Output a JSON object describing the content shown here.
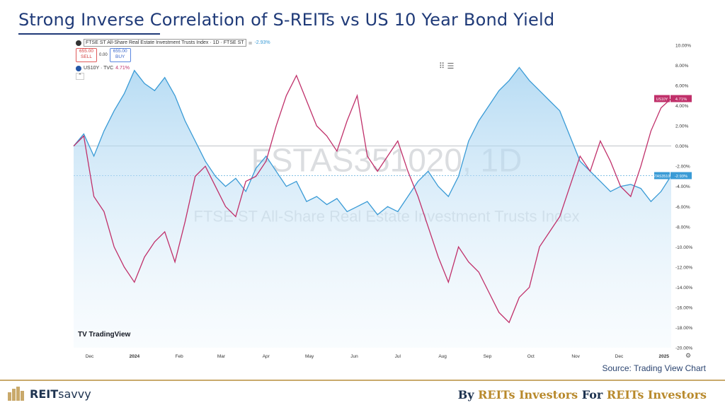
{
  "slide": {
    "title": "Strong Inverse Correlation of S-REITs vs US 10 Year Bond Yield",
    "source": "Source: Trading View Chart",
    "brand_a": "REIT",
    "brand_b": "savvy",
    "tagline_parts": [
      "By ",
      "REITs Investors",
      " For ",
      "REITs Investors"
    ]
  },
  "chart_legend": {
    "series1": "FTSE ST All-Share Real Estate Investment Trusts Index · 1D · FTSE ST",
    "series1_value": "-2.93%",
    "sell_price": "655.00",
    "sell_label": "SELL",
    "spread": "0.00",
    "buy_price": "655.00",
    "buy_label": "BUY",
    "series2": "US10Y · TVC",
    "series2_value": "4.71%"
  },
  "watermark": {
    "symbol": "FSTAS351020, 1D",
    "name": "FTSE ST All-Share Real Estate Investment Trusts Index",
    "logo": "TradingView"
  },
  "chart_data": {
    "type": "line",
    "yunit": "%",
    "ylim": [
      -20,
      10
    ],
    "yticks": [
      "10.00%",
      "8.00%",
      "6.00%",
      "4.00%",
      "2.00%",
      "0.00%",
      "-2.00%",
      "-4.00%",
      "-6.00%",
      "-8.00%",
      "-10.00%",
      "-12.00%",
      "-14.00%",
      "-16.00%",
      "-18.00%",
      "-20.00%"
    ],
    "xticks": [
      "Dec",
      "2024",
      "Feb",
      "Mar",
      "Apr",
      "May",
      "Jun",
      "Jul",
      "Aug",
      "Sep",
      "Oct",
      "Nov",
      "Dec",
      "2025"
    ],
    "x_domain": [
      "2023-11-20",
      "2025-01-06"
    ],
    "series": [
      {
        "name": "FTSE ST All-Share Real Estate Investment Trusts Index",
        "tag": "FSTAS351020",
        "last_label": "-2.93%",
        "color": "#3a9bd6",
        "points": [
          [
            "2023-11-20",
            0.0
          ],
          [
            "2023-11-27",
            1.2
          ],
          [
            "2023-12-04",
            -1.0
          ],
          [
            "2023-12-11",
            1.5
          ],
          [
            "2023-12-18",
            3.5
          ],
          [
            "2023-12-25",
            5.2
          ],
          [
            "2024-01-01",
            7.5
          ],
          [
            "2024-01-08",
            6.2
          ],
          [
            "2024-01-15",
            5.5
          ],
          [
            "2024-01-22",
            6.8
          ],
          [
            "2024-01-29",
            5.0
          ],
          [
            "2024-02-05",
            2.5
          ],
          [
            "2024-02-12",
            0.5
          ],
          [
            "2024-02-19",
            -1.5
          ],
          [
            "2024-02-26",
            -3.0
          ],
          [
            "2024-03-04",
            -4.0
          ],
          [
            "2024-03-11",
            -3.2
          ],
          [
            "2024-03-18",
            -4.5
          ],
          [
            "2024-03-25",
            -2.2
          ],
          [
            "2024-04-01",
            -1.0
          ],
          [
            "2024-04-08",
            -2.5
          ],
          [
            "2024-04-15",
            -4.0
          ],
          [
            "2024-04-22",
            -3.5
          ],
          [
            "2024-04-29",
            -5.5
          ],
          [
            "2024-05-06",
            -5.0
          ],
          [
            "2024-05-13",
            -5.8
          ],
          [
            "2024-05-20",
            -5.2
          ],
          [
            "2024-05-27",
            -6.5
          ],
          [
            "2024-06-03",
            -6.0
          ],
          [
            "2024-06-10",
            -5.5
          ],
          [
            "2024-06-17",
            -6.8
          ],
          [
            "2024-06-24",
            -6.0
          ],
          [
            "2024-07-01",
            -6.5
          ],
          [
            "2024-07-08",
            -5.0
          ],
          [
            "2024-07-15",
            -3.5
          ],
          [
            "2024-07-22",
            -2.5
          ],
          [
            "2024-07-29",
            -4.0
          ],
          [
            "2024-08-05",
            -5.0
          ],
          [
            "2024-08-12",
            -3.0
          ],
          [
            "2024-08-19",
            0.5
          ],
          [
            "2024-08-26",
            2.5
          ],
          [
            "2024-09-02",
            4.0
          ],
          [
            "2024-09-09",
            5.5
          ],
          [
            "2024-09-16",
            6.5
          ],
          [
            "2024-09-23",
            7.8
          ],
          [
            "2024-09-30",
            6.5
          ],
          [
            "2024-10-07",
            5.5
          ],
          [
            "2024-10-14",
            4.5
          ],
          [
            "2024-10-21",
            3.5
          ],
          [
            "2024-10-28",
            1.0
          ],
          [
            "2024-11-04",
            -1.5
          ],
          [
            "2024-11-11",
            -2.5
          ],
          [
            "2024-11-18",
            -3.5
          ],
          [
            "2024-11-25",
            -4.5
          ],
          [
            "2024-12-02",
            -4.0
          ],
          [
            "2024-12-09",
            -3.8
          ],
          [
            "2024-12-16",
            -4.2
          ],
          [
            "2024-12-23",
            -5.5
          ],
          [
            "2024-12-30",
            -4.5
          ],
          [
            "2025-01-06",
            -2.93
          ]
        ]
      },
      {
        "name": "US10Y",
        "tag": "US10Y",
        "last_label": "4.71%",
        "color": "#c0306a",
        "points": [
          [
            "2023-11-20",
            0.0
          ],
          [
            "2023-11-27",
            1.0
          ],
          [
            "2023-12-04",
            -5.0
          ],
          [
            "2023-12-11",
            -6.5
          ],
          [
            "2023-12-18",
            -10.0
          ],
          [
            "2023-12-25",
            -12.0
          ],
          [
            "2024-01-01",
            -13.5
          ],
          [
            "2024-01-08",
            -11.0
          ],
          [
            "2024-01-15",
            -9.5
          ],
          [
            "2024-01-22",
            -8.5
          ],
          [
            "2024-01-29",
            -11.5
          ],
          [
            "2024-02-05",
            -7.5
          ],
          [
            "2024-02-12",
            -3.0
          ],
          [
            "2024-02-19",
            -2.0
          ],
          [
            "2024-02-26",
            -4.0
          ],
          [
            "2024-03-04",
            -6.0
          ],
          [
            "2024-03-11",
            -7.0
          ],
          [
            "2024-03-18",
            -3.5
          ],
          [
            "2024-03-25",
            -3.0
          ],
          [
            "2024-04-01",
            -1.5
          ],
          [
            "2024-04-08",
            2.0
          ],
          [
            "2024-04-15",
            5.0
          ],
          [
            "2024-04-22",
            7.0
          ],
          [
            "2024-04-29",
            4.5
          ],
          [
            "2024-05-06",
            2.0
          ],
          [
            "2024-05-13",
            1.0
          ],
          [
            "2024-05-20",
            -0.5
          ],
          [
            "2024-05-27",
            2.5
          ],
          [
            "2024-06-03",
            5.0
          ],
          [
            "2024-06-10",
            -1.0
          ],
          [
            "2024-06-17",
            -2.5
          ],
          [
            "2024-06-24",
            -1.0
          ],
          [
            "2024-07-01",
            0.5
          ],
          [
            "2024-07-08",
            -2.5
          ],
          [
            "2024-07-15",
            -5.0
          ],
          [
            "2024-07-22",
            -8.0
          ],
          [
            "2024-07-29",
            -11.0
          ],
          [
            "2024-08-05",
            -13.5
          ],
          [
            "2024-08-12",
            -10.0
          ],
          [
            "2024-08-19",
            -11.5
          ],
          [
            "2024-08-26",
            -12.5
          ],
          [
            "2024-09-02",
            -14.5
          ],
          [
            "2024-09-09",
            -16.5
          ],
          [
            "2024-09-16",
            -17.5
          ],
          [
            "2024-09-23",
            -15.0
          ],
          [
            "2024-09-30",
            -14.0
          ],
          [
            "2024-10-07",
            -10.0
          ],
          [
            "2024-10-14",
            -8.5
          ],
          [
            "2024-10-21",
            -7.0
          ],
          [
            "2024-10-28",
            -4.0
          ],
          [
            "2024-11-04",
            -1.0
          ],
          [
            "2024-11-11",
            -2.5
          ],
          [
            "2024-11-18",
            0.5
          ],
          [
            "2024-11-25",
            -1.5
          ],
          [
            "2024-12-02",
            -4.0
          ],
          [
            "2024-12-09",
            -5.0
          ],
          [
            "2024-12-16",
            -2.0
          ],
          [
            "2024-12-23",
            1.5
          ],
          [
            "2024-12-30",
            3.8
          ],
          [
            "2025-01-06",
            4.71
          ]
        ]
      }
    ],
    "grid": false,
    "legend": "top-left"
  }
}
